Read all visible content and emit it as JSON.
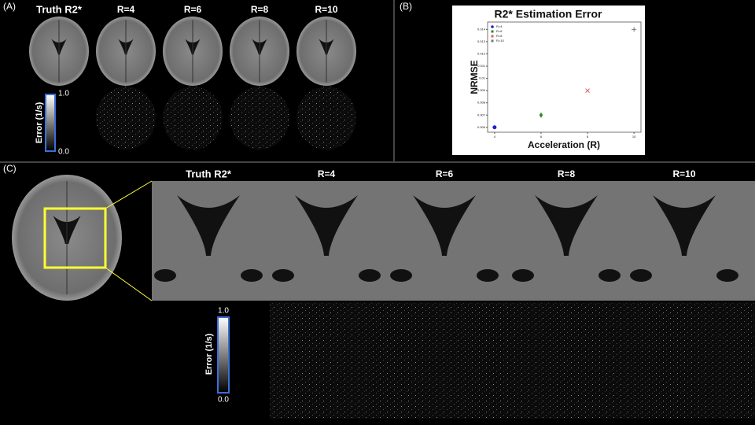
{
  "panels": {
    "a": {
      "label": "(A)",
      "titles": [
        "Truth R2*",
        "R=4",
        "R=6",
        "R=8",
        "R=10"
      ],
      "colorbar": {
        "label": "Error (1/s)",
        "max": "1.0",
        "min": "0.0"
      }
    },
    "b": {
      "label": "(B)"
    },
    "c": {
      "label": "(C)",
      "titles": [
        "Truth R2*",
        "R=4",
        "R=6",
        "R=8",
        "R=10"
      ],
      "colorbar": {
        "label": "Error (1/s)",
        "max": "1.0",
        "min": "0.0"
      }
    }
  },
  "chart_data": {
    "type": "scatter",
    "title": "R2* Estimation Error",
    "x_label": "Acceleration (R)",
    "y_label": "NRMSE",
    "series": [
      {
        "name": "R=4",
        "color": "#1f1fd0",
        "marker": "circle",
        "x": [
          4
        ],
        "values": [
          0.006
        ]
      },
      {
        "name": "R=6",
        "color": "#2a8a2a",
        "marker": "diamond",
        "x": [
          6
        ],
        "values": [
          0.007
        ]
      },
      {
        "name": "R=8",
        "color": "#e06060",
        "marker": "x",
        "x": [
          8
        ],
        "values": [
          0.009
        ]
      },
      {
        "name": "R=10",
        "color": "#777777",
        "marker": "plus",
        "x": [
          10
        ],
        "values": [
          0.014
        ]
      }
    ],
    "xlim": [
      3.7,
      10.3
    ],
    "ylim": [
      0.0056,
      0.0146
    ],
    "xticks": [
      4,
      6,
      8,
      10
    ],
    "yticks": [
      0.006,
      0.007,
      0.008,
      0.009,
      0.01,
      0.011,
      0.012,
      0.013,
      0.014
    ],
    "legend": "upper-left"
  }
}
